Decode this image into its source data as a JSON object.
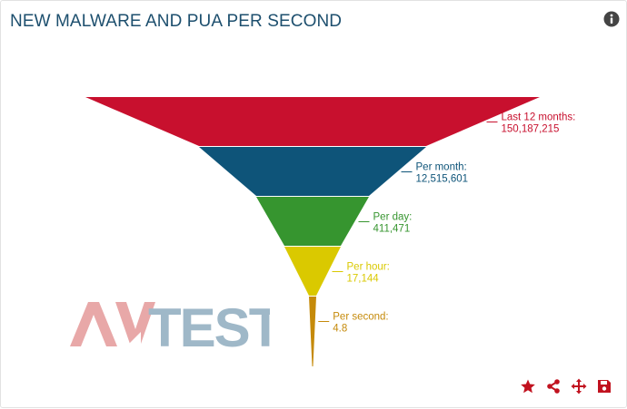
{
  "header": {
    "title": "NEW MALWARE AND PUA PER SECOND",
    "info_icon": "info-circle-icon"
  },
  "watermark": {
    "logo_text": "AV-TEST",
    "colors": {
      "av": "#e8a8a8",
      "test": "#9fb8c8"
    }
  },
  "footer": {
    "icons": [
      "star-icon",
      "share-icon",
      "move-icon",
      "save-icon"
    ],
    "icon_color": "#c1121f"
  },
  "chart_data": {
    "type": "funnel",
    "title": "NEW MALWARE AND PUA PER SECOND",
    "stages": [
      {
        "label": "Last 12 months:",
        "value": "150,187,215",
        "color": "#c8102e"
      },
      {
        "label": "Per month:",
        "value": "12,515,601",
        "color": "#0e5479"
      },
      {
        "label": "Per day:",
        "value": "411,471",
        "color": "#36952f"
      },
      {
        "label": "Per hour:",
        "value": "17,144",
        "color": "#dac900"
      },
      {
        "label": "Per second:",
        "value": "4.8",
        "color": "#c58a0a"
      }
    ]
  }
}
